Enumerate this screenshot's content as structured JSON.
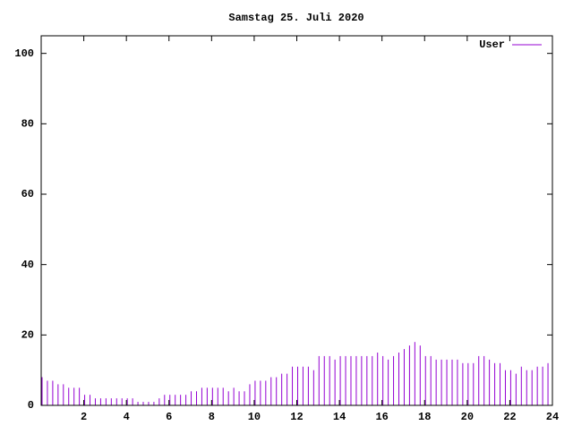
{
  "chart_data": {
    "type": "impulse",
    "title": "Samstag 25. Juli 2020",
    "x": [
      0,
      0.25,
      0.5,
      0.75,
      1,
      1.25,
      1.5,
      1.75,
      2,
      2.25,
      2.5,
      2.75,
      3,
      3.25,
      3.5,
      3.75,
      4,
      4.25,
      4.5,
      4.75,
      5,
      5.25,
      5.5,
      5.75,
      6,
      6.25,
      6.5,
      6.75,
      7,
      7.25,
      7.5,
      7.75,
      8,
      8.25,
      8.5,
      8.75,
      9,
      9.25,
      9.5,
      9.75,
      10,
      10.25,
      10.5,
      10.75,
      11,
      11.25,
      11.5,
      11.75,
      12,
      12.25,
      12.5,
      12.75,
      13,
      13.25,
      13.5,
      13.75,
      14,
      14.25,
      14.5,
      14.75,
      15,
      15.25,
      15.5,
      15.75,
      16,
      16.25,
      16.5,
      16.75,
      17,
      17.25,
      17.5,
      17.75,
      18,
      18.25,
      18.5,
      18.75,
      19,
      19.25,
      19.5,
      19.75,
      20,
      20.25,
      20.5,
      20.75,
      21,
      21.25,
      21.5,
      21.75,
      22,
      22.25,
      22.5,
      22.75,
      23,
      23.25,
      23.5,
      23.75
    ],
    "series": [
      {
        "name": "User",
        "color": "#9400d3",
        "values": [
          8,
          7,
          7,
          6,
          6,
          5,
          5,
          5,
          3,
          3,
          2,
          2,
          2,
          2,
          2,
          2,
          2,
          2,
          1,
          1,
          1,
          1,
          2,
          3,
          3,
          3,
          3,
          3,
          4,
          4,
          5,
          5,
          5,
          5,
          5,
          4,
          5,
          4,
          4,
          6,
          7,
          7,
          7,
          8,
          8,
          9,
          9,
          11,
          11,
          11,
          11,
          10,
          14,
          14,
          14,
          13,
          14,
          14,
          14,
          14,
          14,
          14,
          14,
          15,
          14,
          13,
          14,
          15,
          16,
          17,
          18,
          17,
          14,
          14,
          13,
          13,
          13,
          13,
          13,
          12,
          12,
          12,
          14,
          14,
          13,
          12,
          12,
          10,
          10,
          9,
          11,
          10,
          10,
          11,
          11,
          12
        ]
      }
    ],
    "xlim": [
      0,
      24
    ],
    "xticks": [
      2,
      4,
      6,
      8,
      10,
      12,
      14,
      16,
      18,
      20,
      22,
      24
    ],
    "ylim": [
      0,
      105
    ],
    "yticks": [
      0,
      20,
      40,
      60,
      80,
      100
    ],
    "legend": "upper right"
  }
}
